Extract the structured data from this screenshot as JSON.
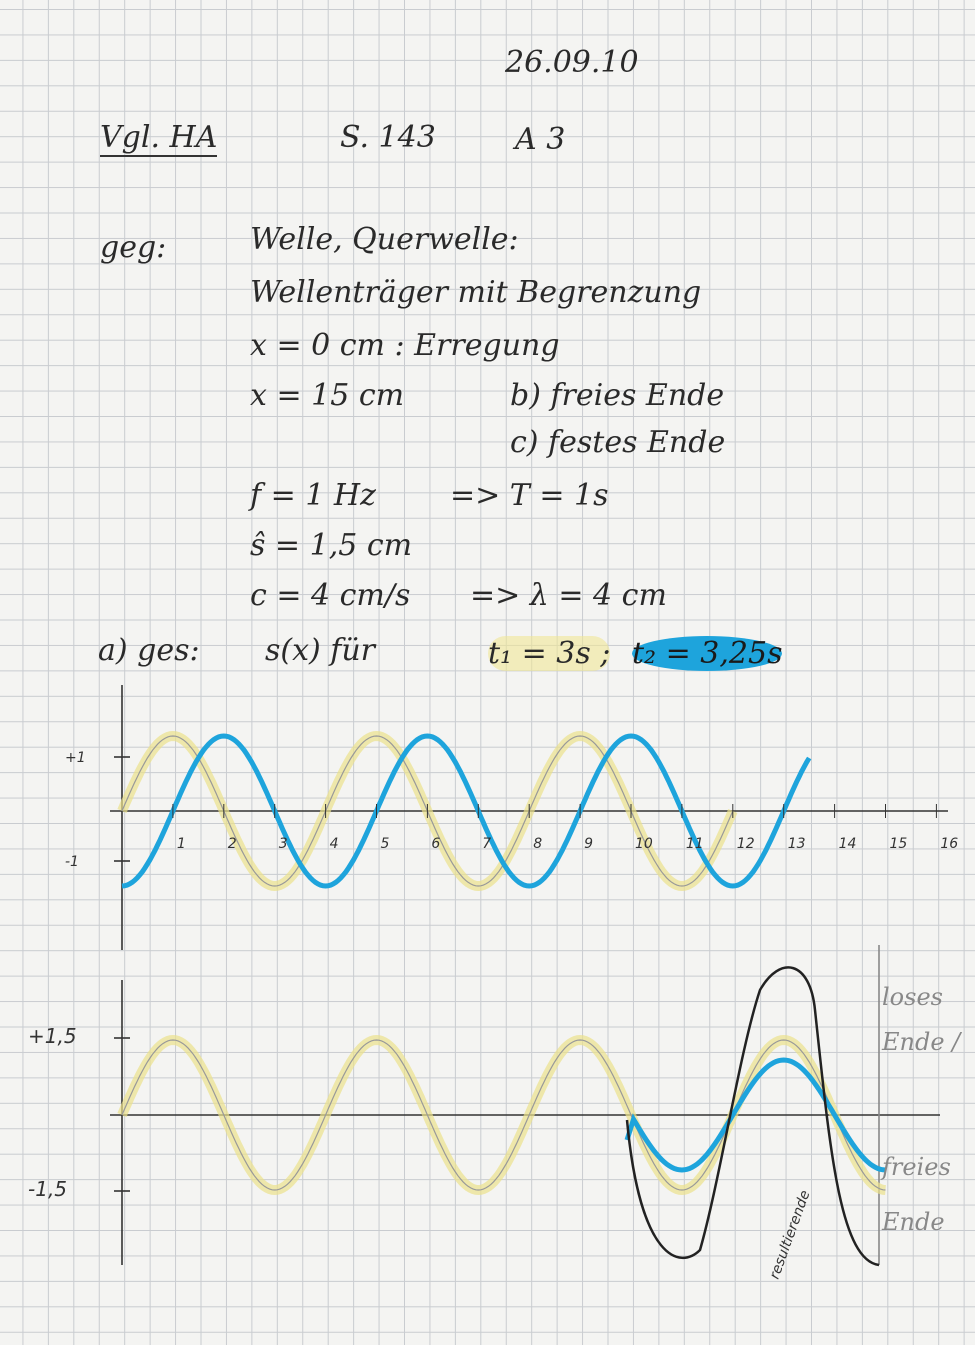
{
  "date": "26.09.10",
  "heading": {
    "ref": "Vgl. HA",
    "page": "S. 143",
    "task": "A 3"
  },
  "given": {
    "label": "geg:",
    "lines": [
      "Welle, Querwelle:",
      "Wellenträger mit Begrenzung",
      "x = 0 cm :  Erregung",
      "x = 15 cm",
      "b) freies Ende",
      "c) festes Ende",
      "f = 1 Hz",
      "=> T = 1s",
      "ŝ = 1,5 cm",
      "c = 4 cm/s",
      "=> λ = 4 cm"
    ]
  },
  "wanted": {
    "label": "a) ges:",
    "text": "s(x)  für",
    "t1": "t₁ = 3s ;",
    "t2": "t₂ = 3,25s"
  },
  "graph1": {
    "y_labels": [
      "+1",
      "-1"
    ],
    "x_labels": [
      "1",
      "2",
      "3",
      "4",
      "5",
      "6",
      "7",
      "8",
      "9",
      "10",
      "11",
      "12",
      "13",
      "14",
      "15",
      "16"
    ]
  },
  "graph2": {
    "y_labels": [
      "+1,5",
      "-1,5"
    ],
    "annotations": [
      "loses Ende /",
      "freies Ende",
      "resultierende"
    ]
  }
}
